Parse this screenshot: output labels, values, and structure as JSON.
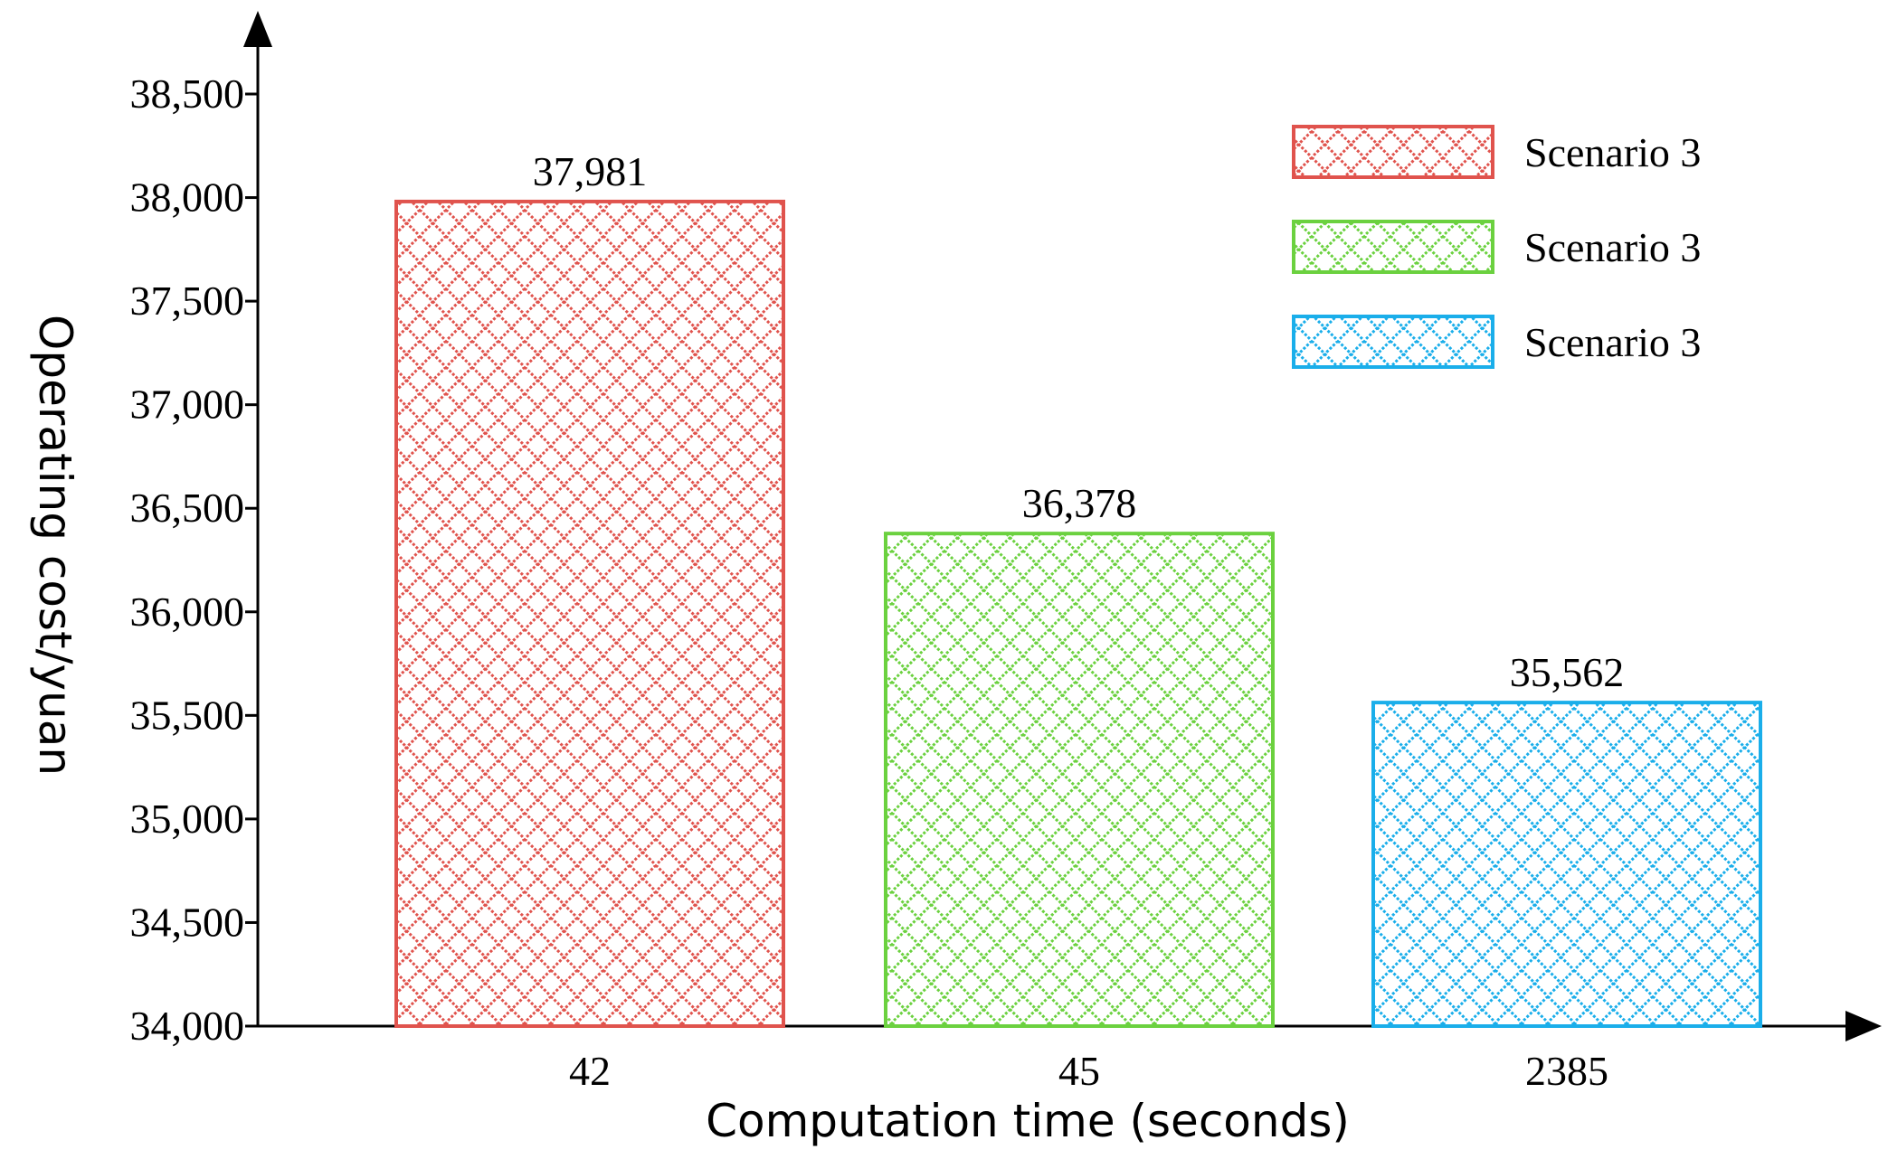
{
  "chart_data": {
    "type": "bar",
    "title": "",
    "xlabel": "Computation time (seconds)",
    "ylabel": "Operating cost/yuan",
    "categories": [
      "42",
      "45",
      "2385"
    ],
    "series": [
      {
        "name": "Scenario 3",
        "color": "#e0534d",
        "values": [
          37981,
          null,
          null
        ],
        "value_labels": [
          "37,981",
          "",
          ""
        ]
      },
      {
        "name": "Scenario 3",
        "color": "#6bd13f",
        "values": [
          null,
          36378,
          null
        ],
        "value_labels": [
          "",
          "36,378",
          ""
        ]
      },
      {
        "name": "Scenario 3",
        "color": "#1aaeea",
        "values": [
          null,
          null,
          35562
        ],
        "value_labels": [
          "",
          "",
          "35,562"
        ]
      }
    ],
    "ylim": [
      34000,
      38700
    ],
    "yticks": [
      34000,
      34500,
      35000,
      35500,
      36000,
      36500,
      37000,
      37500,
      38000,
      38500
    ],
    "ytick_labels": [
      "34,000",
      "34,500",
      "35,000",
      "35,500",
      "36,000",
      "36,500",
      "37,000",
      "37,500",
      "38,000",
      "38,500"
    ],
    "grid": false,
    "legend_position": "top-right",
    "bar_fill": "crosshatch"
  }
}
